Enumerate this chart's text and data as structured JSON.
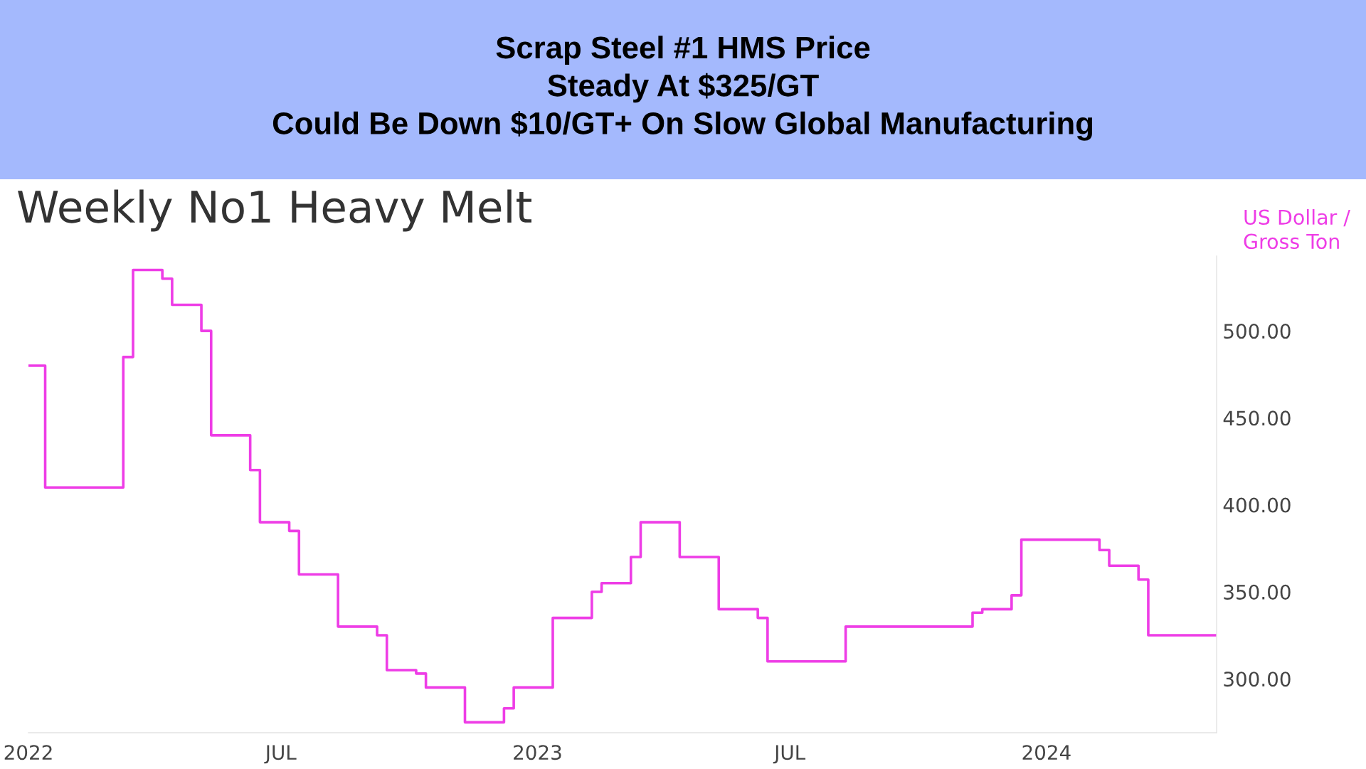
{
  "chart_data": {
    "type": "step",
    "title": "Scrap Steel #1 HMS Price\nSteady At $325/GT\nCould Be Down $10/GT+ On Slow Global Manufacturing",
    "subtitle": "Weekly No1 Heavy Melt",
    "ylabel": "US Dollar /\nGross Ton",
    "x": [
      "2022-01-01",
      "2022-01-13",
      "2022-03-10",
      "2022-03-17",
      "2022-04-07",
      "2022-04-14",
      "2022-05-05",
      "2022-05-12",
      "2022-06-09",
      "2022-06-16",
      "2022-07-07",
      "2022-07-14",
      "2022-08-11",
      "2022-09-08",
      "2022-09-15",
      "2022-10-06",
      "2022-10-13",
      "2022-11-10",
      "2022-12-08",
      "2022-12-15",
      "2023-01-12",
      "2023-02-09",
      "2023-02-16",
      "2023-03-09",
      "2023-03-16",
      "2023-04-13",
      "2023-05-11",
      "2023-06-08",
      "2023-06-15",
      "2023-08-10",
      "2023-11-09",
      "2023-11-16",
      "2023-12-07",
      "2023-12-14",
      "2024-02-08",
      "2024-02-15",
      "2024-03-07",
      "2024-03-14",
      "2024-05-02"
    ],
    "series": [
      {
        "color": "#ee3de6",
        "values": [
          480,
          410,
          485,
          535,
          530,
          515,
          500,
          440,
          420,
          390,
          385,
          360,
          330,
          325,
          305,
          303,
          295,
          275,
          283,
          295,
          335,
          350,
          355,
          370,
          390,
          370,
          340,
          335,
          310,
          330,
          338,
          340,
          348,
          380,
          374,
          365,
          357,
          325,
          325
        ]
      }
    ],
    "xlim": [
      "2022-01-01",
      "2024-05-02"
    ],
    "xticks": [
      {
        "value": "2022-01-01",
        "label": "2022"
      },
      {
        "value": "2022-07-01",
        "label": "JUL"
      },
      {
        "value": "2023-01-01",
        "label": "2023"
      },
      {
        "value": "2023-07-01",
        "label": "JUL"
      },
      {
        "value": "2024-01-01",
        "label": "2024"
      }
    ],
    "ylim": [
      269,
      543
    ],
    "yticks": [
      {
        "value": 300,
        "label": "300.00"
      },
      {
        "value": 350,
        "label": "350.00"
      },
      {
        "value": 400,
        "label": "400.00"
      },
      {
        "value": 450,
        "label": "450.00"
      },
      {
        "value": 500,
        "label": "500.00"
      }
    ],
    "grid": false,
    "marker": "none",
    "line_style": "solid"
  }
}
